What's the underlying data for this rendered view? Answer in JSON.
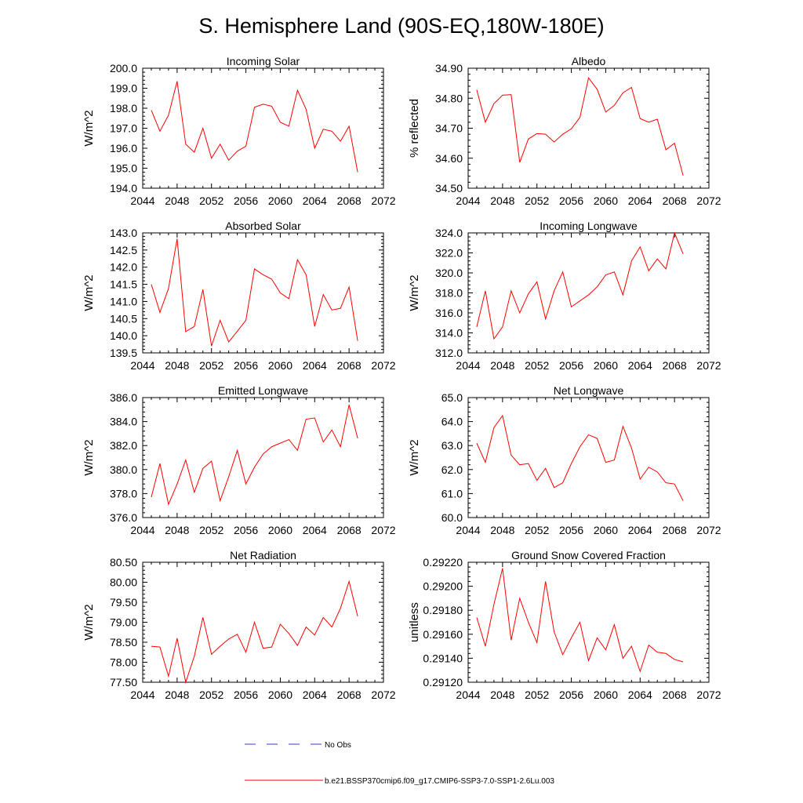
{
  "title": "S. Hemisphere Land (90S-EQ,180W-180E)",
  "legend": {
    "obs_label": "No Obs",
    "model_label": "b.e21.BSSP370cmip6.f09_g17.CMIP6-SSP3-7.0-SSP1-2.6Lu.003",
    "obs_color": "#3a3acc",
    "model_color": "#ff0000"
  },
  "chart_data": [
    {
      "type": "line",
      "title": "Incoming Solar",
      "ylabel": "W/m^2",
      "xlim": [
        2044,
        2072
      ],
      "ylim": [
        194.0,
        200.0
      ],
      "xticks": [
        2044,
        2048,
        2052,
        2056,
        2060,
        2064,
        2068,
        2072
      ],
      "xtick_labels": [
        "2044",
        "2048",
        "2052",
        "2056",
        "2060",
        "2064",
        "2068",
        "2072"
      ],
      "yticks": [
        194.0,
        195.0,
        196.0,
        197.0,
        198.0,
        199.0,
        200.0
      ],
      "ytick_labels": [
        "194.0",
        "195.0",
        "196.0",
        "197.0",
        "198.0",
        "199.0",
        "200.0"
      ],
      "x": [
        2045,
        2046,
        2047,
        2048,
        2049,
        2050,
        2051,
        2052,
        2053,
        2054,
        2055,
        2056,
        2057,
        2058,
        2059,
        2060,
        2061,
        2062,
        2063,
        2064,
        2065,
        2066,
        2067,
        2068,
        2069
      ],
      "series": [
        {
          "values": [
            197.9,
            196.85,
            197.65,
            199.35,
            196.2,
            195.8,
            197.0,
            195.5,
            196.2,
            195.4,
            195.85,
            196.1,
            198.05,
            198.2,
            198.1,
            197.3,
            197.1,
            198.9,
            197.95,
            196.0,
            196.95,
            196.85,
            196.35,
            197.1,
            194.8
          ]
        }
      ]
    },
    {
      "type": "line",
      "title": "Albedo",
      "ylabel": "% reflected",
      "xlim": [
        2044,
        2072
      ],
      "ylim": [
        34.5,
        34.9
      ],
      "xticks": [
        2044,
        2048,
        2052,
        2056,
        2060,
        2064,
        2068,
        2072
      ],
      "xtick_labels": [
        "2044",
        "2048",
        "2052",
        "2056",
        "2060",
        "2064",
        "2068",
        "2072"
      ],
      "yticks": [
        34.5,
        34.6,
        34.7,
        34.8,
        34.9
      ],
      "ytick_labels": [
        "34.50",
        "34.60",
        "34.70",
        "34.80",
        "34.90"
      ],
      "x": [
        2045,
        2046,
        2047,
        2048,
        2049,
        2050,
        2051,
        2052,
        2053,
        2054,
        2055,
        2056,
        2057,
        2058,
        2059,
        2060,
        2061,
        2062,
        2063,
        2064,
        2065,
        2066,
        2067,
        2068,
        2069
      ],
      "series": [
        {
          "values": [
            34.828,
            34.72,
            34.782,
            34.81,
            34.812,
            34.586,
            34.664,
            34.682,
            34.68,
            34.654,
            34.68,
            34.698,
            34.736,
            34.868,
            34.83,
            34.754,
            34.776,
            34.818,
            34.836,
            34.732,
            34.72,
            34.73,
            34.628,
            34.65,
            34.542
          ]
        }
      ]
    },
    {
      "type": "line",
      "title": "Absorbed Solar",
      "ylabel": "W/m^2",
      "xlim": [
        2044,
        2072
      ],
      "ylim": [
        139.5,
        143.0
      ],
      "xticks": [
        2044,
        2048,
        2052,
        2056,
        2060,
        2064,
        2068,
        2072
      ],
      "xtick_labels": [
        "2044",
        "2048",
        "2052",
        "2056",
        "2060",
        "2064",
        "2068",
        "2072"
      ],
      "yticks": [
        139.5,
        140.0,
        140.5,
        141.0,
        141.5,
        142.0,
        142.5,
        143.0
      ],
      "ytick_labels": [
        "139.5",
        "140.0",
        "140.5",
        "141.0",
        "141.5",
        "142.0",
        "142.5",
        "143.0"
      ],
      "x": [
        2045,
        2046,
        2047,
        2048,
        2049,
        2050,
        2051,
        2052,
        2053,
        2054,
        2055,
        2056,
        2057,
        2058,
        2059,
        2060,
        2061,
        2062,
        2063,
        2064,
        2065,
        2066,
        2067,
        2068,
        2069
      ],
      "series": [
        {
          "values": [
            141.5,
            140.68,
            141.38,
            142.83,
            140.12,
            140.27,
            141.35,
            139.7,
            140.45,
            139.82,
            140.13,
            140.45,
            141.95,
            141.78,
            141.65,
            141.25,
            141.08,
            142.22,
            141.78,
            140.27,
            141.2,
            140.75,
            140.8,
            141.42,
            139.85
          ]
        }
      ]
    },
    {
      "type": "line",
      "title": "Incoming Longwave",
      "ylabel": "W/m^2",
      "xlim": [
        2044,
        2072
      ],
      "ylim": [
        312.0,
        324.0
      ],
      "xticks": [
        2044,
        2048,
        2052,
        2056,
        2060,
        2064,
        2068,
        2072
      ],
      "xtick_labels": [
        "2044",
        "2048",
        "2052",
        "2056",
        "2060",
        "2064",
        "2068",
        "2072"
      ],
      "yticks": [
        312.0,
        314.0,
        316.0,
        318.0,
        320.0,
        322.0,
        324.0
      ],
      "ytick_labels": [
        "312.0",
        "314.0",
        "316.0",
        "318.0",
        "320.0",
        "322.0",
        "324.0"
      ],
      "x": [
        2045,
        2046,
        2047,
        2048,
        2049,
        2050,
        2051,
        2052,
        2053,
        2054,
        2055,
        2056,
        2057,
        2058,
        2059,
        2060,
        2061,
        2062,
        2063,
        2064,
        2065,
        2066,
        2067,
        2068,
        2069
      ],
      "series": [
        {
          "values": [
            314.6,
            318.2,
            313.4,
            314.6,
            318.2,
            316.0,
            317.9,
            319.1,
            315.4,
            318.2,
            320.1,
            316.6,
            317.2,
            317.8,
            318.6,
            319.8,
            320.1,
            317.8,
            321.2,
            322.6,
            320.2,
            321.4,
            320.4,
            324.0,
            321.9
          ]
        }
      ]
    },
    {
      "type": "line",
      "title": "Emitted Longwave",
      "ylabel": "W/m^2",
      "xlim": [
        2044,
        2072
      ],
      "ylim": [
        376.0,
        386.0
      ],
      "xticks": [
        2044,
        2048,
        2052,
        2056,
        2060,
        2064,
        2068,
        2072
      ],
      "xtick_labels": [
        "2044",
        "2048",
        "2052",
        "2056",
        "2060",
        "2064",
        "2068",
        "2072"
      ],
      "yticks": [
        376.0,
        378.0,
        380.0,
        382.0,
        384.0,
        386.0
      ],
      "ytick_labels": [
        "376.0",
        "378.0",
        "380.0",
        "382.0",
        "384.0",
        "386.0"
      ],
      "x": [
        2045,
        2046,
        2047,
        2048,
        2049,
        2050,
        2051,
        2052,
        2053,
        2054,
        2055,
        2056,
        2057,
        2058,
        2059,
        2060,
        2061,
        2062,
        2063,
        2064,
        2065,
        2066,
        2067,
        2068,
        2069
      ],
      "series": [
        {
          "values": [
            377.7,
            380.5,
            377.1,
            378.8,
            380.8,
            378.1,
            380.1,
            380.7,
            377.4,
            379.4,
            381.6,
            378.8,
            380.2,
            381.3,
            381.9,
            382.2,
            382.5,
            381.6,
            384.2,
            384.3,
            382.3,
            383.3,
            381.9,
            385.4,
            382.6
          ]
        }
      ]
    },
    {
      "type": "line",
      "title": "Net Longwave",
      "ylabel": "W/m^2",
      "xlim": [
        2044,
        2072
      ],
      "ylim": [
        60.0,
        65.0
      ],
      "xticks": [
        2044,
        2048,
        2052,
        2056,
        2060,
        2064,
        2068,
        2072
      ],
      "xtick_labels": [
        "2044",
        "2048",
        "2052",
        "2056",
        "2060",
        "2064",
        "2068",
        "2072"
      ],
      "yticks": [
        60.0,
        61.0,
        62.0,
        63.0,
        64.0,
        65.0
      ],
      "ytick_labels": [
        "60.0",
        "61.0",
        "62.0",
        "63.0",
        "64.0",
        "65.0"
      ],
      "x": [
        2045,
        2046,
        2047,
        2048,
        2049,
        2050,
        2051,
        2052,
        2053,
        2054,
        2055,
        2056,
        2057,
        2058,
        2059,
        2060,
        2061,
        2062,
        2063,
        2064,
        2065,
        2066,
        2067,
        2068,
        2069
      ],
      "series": [
        {
          "values": [
            63.1,
            62.3,
            63.75,
            64.25,
            62.6,
            62.2,
            62.25,
            61.55,
            62.05,
            61.25,
            61.45,
            62.25,
            62.95,
            63.45,
            63.3,
            62.3,
            62.4,
            63.8,
            62.9,
            61.6,
            62.1,
            61.9,
            61.45,
            61.4,
            60.7
          ]
        }
      ]
    },
    {
      "type": "line",
      "title": "Net Radiation",
      "ylabel": "W/m^2",
      "xlim": [
        2044,
        2072
      ],
      "ylim": [
        77.5,
        80.5
      ],
      "xticks": [
        2044,
        2048,
        2052,
        2056,
        2060,
        2064,
        2068,
        2072
      ],
      "xtick_labels": [
        "2044",
        "2048",
        "2052",
        "2056",
        "2060",
        "2064",
        "2068",
        "2072"
      ],
      "yticks": [
        77.5,
        78.0,
        78.5,
        79.0,
        79.5,
        80.0,
        80.5
      ],
      "ytick_labels": [
        "77.50",
        "78.00",
        "78.50",
        "79.00",
        "79.50",
        "80.00",
        "80.50"
      ],
      "x": [
        2045,
        2046,
        2047,
        2048,
        2049,
        2050,
        2051,
        2052,
        2053,
        2054,
        2055,
        2056,
        2057,
        2058,
        2059,
        2060,
        2061,
        2062,
        2063,
        2064,
        2065,
        2066,
        2067,
        2068,
        2069
      ],
      "series": [
        {
          "values": [
            78.4,
            78.38,
            77.65,
            78.6,
            77.5,
            78.15,
            79.12,
            78.2,
            78.4,
            78.58,
            78.7,
            78.25,
            79.0,
            78.35,
            78.38,
            78.95,
            78.72,
            78.42,
            78.88,
            78.68,
            79.12,
            78.88,
            79.35,
            80.02,
            79.15
          ]
        }
      ]
    },
    {
      "type": "line",
      "title": "Ground Snow Covered Fraction",
      "ylabel": "unitless",
      "xlim": [
        2044,
        2072
      ],
      "ylim": [
        0.2912,
        0.2922
      ],
      "xticks": [
        2044,
        2048,
        2052,
        2056,
        2060,
        2064,
        2068,
        2072
      ],
      "xtick_labels": [
        "2044",
        "2048",
        "2052",
        "2056",
        "2060",
        "2064",
        "2068",
        "2072"
      ],
      "yticks": [
        0.2912,
        0.2914,
        0.2916,
        0.2918,
        0.292,
        0.2922
      ],
      "ytick_labels": [
        "0.29120",
        "0.29140",
        "0.29160",
        "0.29180",
        "0.29200",
        "0.29220"
      ],
      "x": [
        2045,
        2046,
        2047,
        2048,
        2049,
        2050,
        2051,
        2052,
        2053,
        2054,
        2055,
        2056,
        2057,
        2058,
        2059,
        2060,
        2061,
        2062,
        2063,
        2064,
        2065,
        2066,
        2067,
        2068,
        2069
      ],
      "series": [
        {
          "values": [
            0.29174,
            0.2915,
            0.29185,
            0.29215,
            0.29155,
            0.2919,
            0.2917,
            0.29153,
            0.29204,
            0.29162,
            0.29143,
            0.29157,
            0.2917,
            0.29138,
            0.29157,
            0.29147,
            0.29168,
            0.2914,
            0.2915,
            0.29129,
            0.29151,
            0.29145,
            0.29144,
            0.29139,
            0.29137
          ]
        }
      ]
    }
  ]
}
